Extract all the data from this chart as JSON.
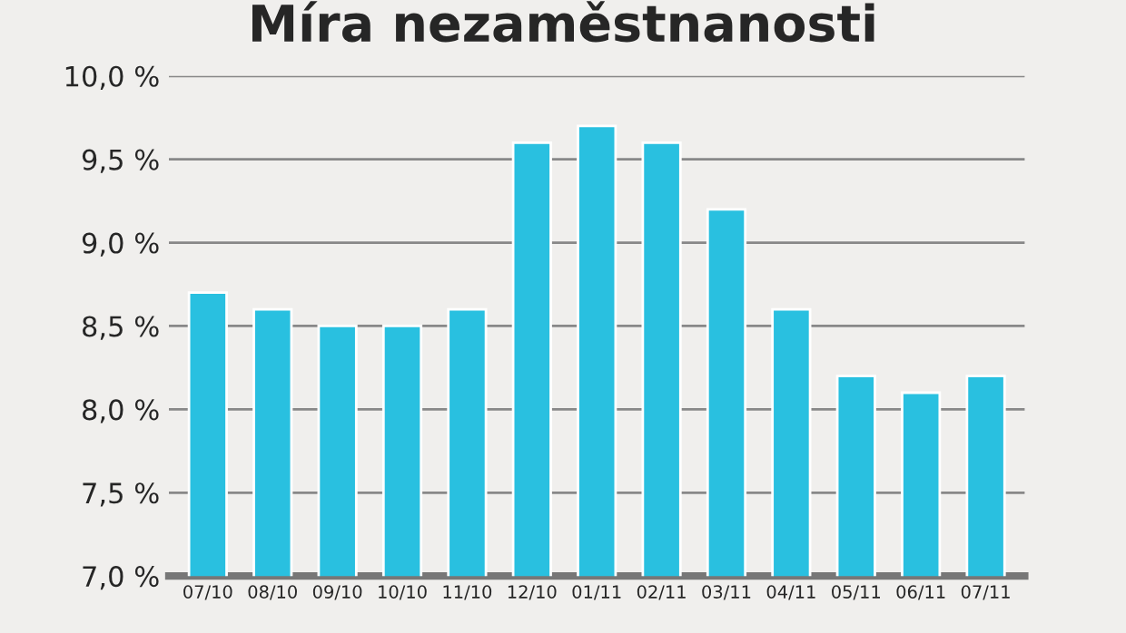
{
  "chart_data": {
    "type": "bar",
    "title": "Míra nezaměstnanosti",
    "categories": [
      "07/10",
      "08/10",
      "09/10",
      "10/10",
      "11/10",
      "12/10",
      "01/11",
      "02/11",
      "03/11",
      "04/11",
      "05/11",
      "06/11",
      "07/11"
    ],
    "values": [
      8.7,
      8.6,
      8.5,
      8.5,
      8.6,
      9.6,
      9.7,
      9.6,
      9.2,
      8.6,
      8.2,
      8.1,
      8.2
    ],
    "color": "#29c0e0",
    "ylim": [
      7.0,
      10.0
    ],
    "yticks": [
      {
        "value": 7.0,
        "label": "7,0 %"
      },
      {
        "value": 7.5,
        "label": "7,5 %"
      },
      {
        "value": 8.0,
        "label": "8,0 %"
      },
      {
        "value": 8.5,
        "label": "8,5 %"
      },
      {
        "value": 9.0,
        "label": "9,0 %"
      },
      {
        "value": 9.5,
        "label": "9,5 %"
      },
      {
        "value": 10.0,
        "label": "10,0 %"
      }
    ],
    "grid": "y"
  }
}
